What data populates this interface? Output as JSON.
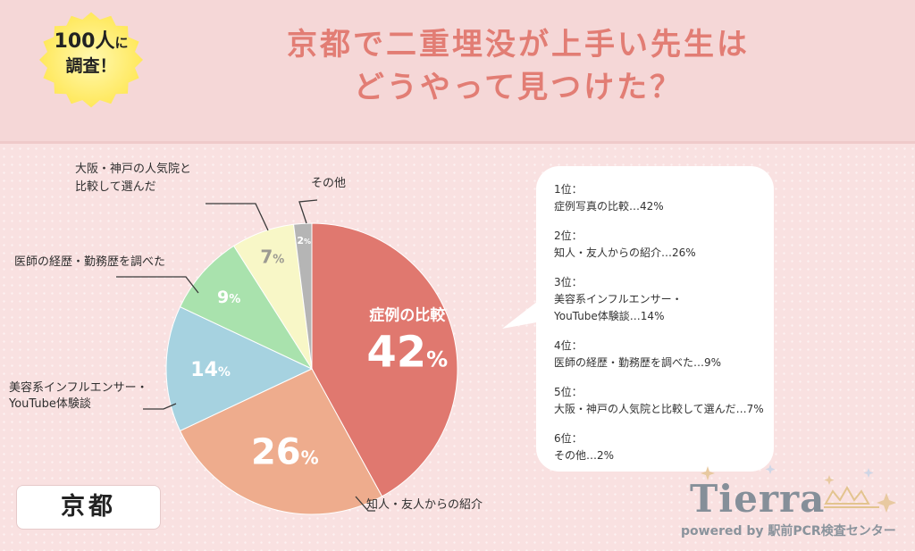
{
  "badge": {
    "line1_number": "100人",
    "line1_suffix": "に",
    "line2": "調査！"
  },
  "title": {
    "line1": "京都で二重埋没が上手い先生は",
    "line2": "どうやって見つけた？"
  },
  "chart_data": {
    "type": "pie",
    "title": "京都で二重埋没が上手い先生はどうやって見つけた？",
    "slices": [
      {
        "label": "症例の比較",
        "value": 42,
        "color": "#e0786f"
      },
      {
        "label": "知人・友人からの紹介",
        "value": 26,
        "color": "#eeac8d"
      },
      {
        "label": "美容系インフルエンサー・YouTube体験談",
        "value": 14,
        "color": "#a6d2e0"
      },
      {
        "label": "医師の経歴・勤務歴を調べた",
        "value": 9,
        "color": "#a9e2ad"
      },
      {
        "label": "大阪・神戸の人気院と比較して選んだ",
        "value": 7,
        "color": "#f8f7c7"
      },
      {
        "label": "その他",
        "value": 2,
        "color": "#b5b5b5"
      }
    ],
    "slice_labels": [
      "42",
      "26",
      "14",
      "9",
      "7",
      "2"
    ],
    "percent_sign": "%",
    "inside_label": "症例の比較"
  },
  "outside_labels": {
    "sonota": "その他",
    "osaka_l1": "大阪・神戸の人気院と",
    "osaka_l2": "比較して選んだ",
    "ishi": "医師の経歴・勤務歴を調べた",
    "influencer_l1": "美容系インフルエンサー・",
    "influencer_l2": "YouTube体験談",
    "chijin": "知人・友人からの紹介"
  },
  "ranking": [
    {
      "rank": "1位：",
      "lines": [
        "症例写真の比較…42%"
      ]
    },
    {
      "rank": "2位：",
      "lines": [
        "知人・友人からの紹介…26%"
      ]
    },
    {
      "rank": "3位：",
      "lines": [
        "美容系インフルエンサー・",
        "YouTube体験談…14%"
      ]
    },
    {
      "rank": "4位：",
      "lines": [
        "医師の経歴・勤務歴を調べた…9%"
      ]
    },
    {
      "rank": "5位：",
      "lines": [
        "大阪・神戸の人気院と比較して選んだ…7%"
      ]
    },
    {
      "rank": "6位：",
      "lines": [
        "その他…2%"
      ]
    }
  ],
  "region_tag": "京都",
  "logo": {
    "word": "Tierra",
    "sub": "powered by 駅前PCR検査センター"
  }
}
